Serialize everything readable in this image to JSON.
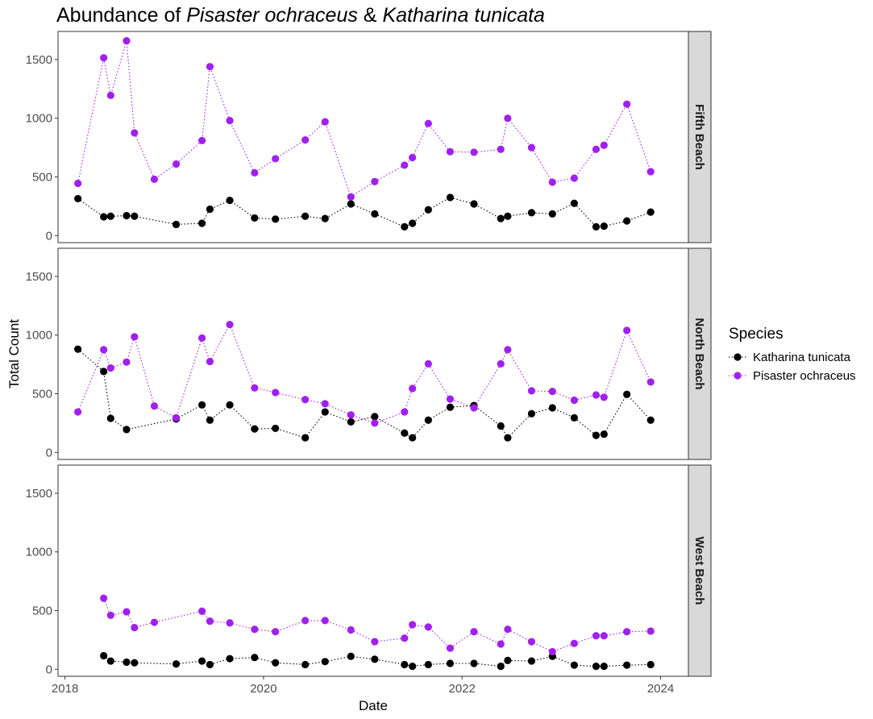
{
  "chart_data": {
    "type": "scatter",
    "title_parts": [
      {
        "text": "Abundance of ",
        "italic": false
      },
      {
        "text": "Pisaster ochraceus",
        "italic": true
      },
      {
        "text": " & ",
        "italic": false
      },
      {
        "text": "Katharina tunicata",
        "italic": true
      }
    ],
    "xlabel": "Date",
    "ylabel": "Total Count",
    "xlim": [
      2017.93,
      2024.28
    ],
    "ylim": [
      -60,
      1740
    ],
    "x_ticks": [
      2018,
      2020,
      2022,
      2024
    ],
    "x_tick_labels": [
      "2018",
      "2020",
      "2022",
      "2024"
    ],
    "y_ticks": [
      0,
      500,
      1000,
      1500
    ],
    "y_tick_labels": [
      "0",
      "500",
      "1000",
      "1500"
    ],
    "grid": false,
    "legend": {
      "title": "Species",
      "position": "right",
      "entries": [
        {
          "label": "Katharina tunicata",
          "color": "#000000"
        },
        {
          "label": "Pisaster ochraceus",
          "color": "#a020f0"
        }
      ]
    },
    "facets": [
      {
        "name": "Fifth Beach",
        "series": [
          {
            "name": "Katharina tunicata",
            "color": "#000000",
            "x": [
              2018.13,
              2018.39,
              2018.46,
              2018.62,
              2018.7,
              2019.12,
              2019.38,
              2019.46,
              2019.66,
              2019.91,
              2020.12,
              2020.42,
              2020.62,
              2020.88,
              2021.12,
              2021.42,
              2021.5,
              2021.66,
              2021.88,
              2022.12,
              2022.39,
              2022.46,
              2022.7,
              2022.91,
              2023.13,
              2023.35,
              2023.43,
              2023.66,
              2023.9
            ],
            "y": [
              315,
              160,
              165,
              170,
              165,
              95,
              105,
              225,
              300,
              150,
              140,
              165,
              145,
              270,
              185,
              75,
              105,
              220,
              325,
              270,
              145,
              165,
              195,
              185,
              275,
              75,
              80,
              125,
              200
            ]
          },
          {
            "name": "Pisaster ochraceus",
            "color": "#a020f0",
            "x": [
              2018.13,
              2018.39,
              2018.46,
              2018.62,
              2018.7,
              2018.9,
              2019.12,
              2019.38,
              2019.46,
              2019.66,
              2019.91,
              2020.12,
              2020.42,
              2020.62,
              2020.88,
              2021.12,
              2021.42,
              2021.5,
              2021.66,
              2021.88,
              2022.12,
              2022.39,
              2022.46,
              2022.7,
              2022.91,
              2023.13,
              2023.35,
              2023.43,
              2023.66,
              2023.9
            ],
            "y": [
              445,
              1515,
              1195,
              1660,
              875,
              480,
              610,
              810,
              1440,
              980,
              535,
              655,
              815,
              970,
              330,
              460,
              600,
              665,
              955,
              715,
              710,
              735,
              1000,
              750,
              455,
              490,
              735,
              770,
              1120,
              545
            ]
          }
        ]
      },
      {
        "name": "North Beach",
        "series": [
          {
            "name": "Katharina tunicata",
            "color": "#000000",
            "x": [
              2018.13,
              2018.39,
              2018.46,
              2018.62,
              2019.12,
              2019.38,
              2019.46,
              2019.66,
              2019.91,
              2020.12,
              2020.42,
              2020.62,
              2020.88,
              2021.12,
              2021.42,
              2021.5,
              2021.66,
              2021.88,
              2022.12,
              2022.39,
              2022.46,
              2022.7,
              2022.91,
              2023.13,
              2023.35,
              2023.43,
              2023.66,
              2023.9
            ],
            "y": [
              880,
              690,
              290,
              195,
              285,
              405,
              275,
              405,
              200,
              205,
              125,
              345,
              260,
              305,
              165,
              125,
              275,
              385,
              400,
              225,
              125,
              330,
              380,
              295,
              145,
              155,
              495,
              275
            ]
          },
          {
            "name": "Pisaster ochraceus",
            "color": "#a020f0",
            "x": [
              2018.13,
              2018.39,
              2018.46,
              2018.62,
              2018.7,
              2018.9,
              2019.12,
              2019.38,
              2019.46,
              2019.66,
              2019.91,
              2020.12,
              2020.42,
              2020.62,
              2020.88,
              2021.12,
              2021.42,
              2021.5,
              2021.66,
              2021.88,
              2022.12,
              2022.39,
              2022.46,
              2022.7,
              2022.91,
              2023.13,
              2023.35,
              2023.43,
              2023.66,
              2023.9
            ],
            "y": [
              345,
              875,
              720,
              770,
              985,
              395,
              295,
              975,
              775,
              1090,
              550,
              510,
              450,
              415,
              320,
              250,
              345,
              545,
              755,
              455,
              380,
              755,
              875,
              525,
              520,
              445,
              490,
              470,
              1040,
              600
            ]
          }
        ]
      },
      {
        "name": "West Beach",
        "series": [
          {
            "name": "Katharina tunicata",
            "color": "#000000",
            "x": [
              2018.39,
              2018.46,
              2018.62,
              2018.7,
              2019.12,
              2019.38,
              2019.46,
              2019.66,
              2019.91,
              2020.12,
              2020.42,
              2020.62,
              2020.88,
              2021.12,
              2021.42,
              2021.5,
              2021.66,
              2021.88,
              2022.12,
              2022.39,
              2022.46,
              2022.7,
              2022.91,
              2023.13,
              2023.35,
              2023.43,
              2023.66,
              2023.9
            ],
            "y": [
              115,
              70,
              60,
              55,
              45,
              70,
              40,
              90,
              100,
              55,
              40,
              65,
              110,
              85,
              40,
              25,
              40,
              50,
              50,
              25,
              75,
              70,
              110,
              35,
              25,
              25,
              35,
              40
            ]
          },
          {
            "name": "Pisaster ochraceus",
            "color": "#a020f0",
            "x": [
              2018.39,
              2018.46,
              2018.62,
              2018.7,
              2018.9,
              2019.38,
              2019.46,
              2019.66,
              2019.91,
              2020.12,
              2020.42,
              2020.62,
              2020.88,
              2021.12,
              2021.42,
              2021.5,
              2021.66,
              2021.88,
              2022.12,
              2022.39,
              2022.46,
              2022.7,
              2022.91,
              2023.13,
              2023.35,
              2023.43,
              2023.66,
              2023.9
            ],
            "y": [
              605,
              460,
              490,
              355,
              400,
              495,
              410,
              395,
              340,
              320,
              415,
              415,
              335,
              235,
              265,
              380,
              360,
              180,
              320,
              215,
              340,
              235,
              150,
              220,
              285,
              285,
              320,
              325
            ]
          }
        ]
      }
    ]
  }
}
